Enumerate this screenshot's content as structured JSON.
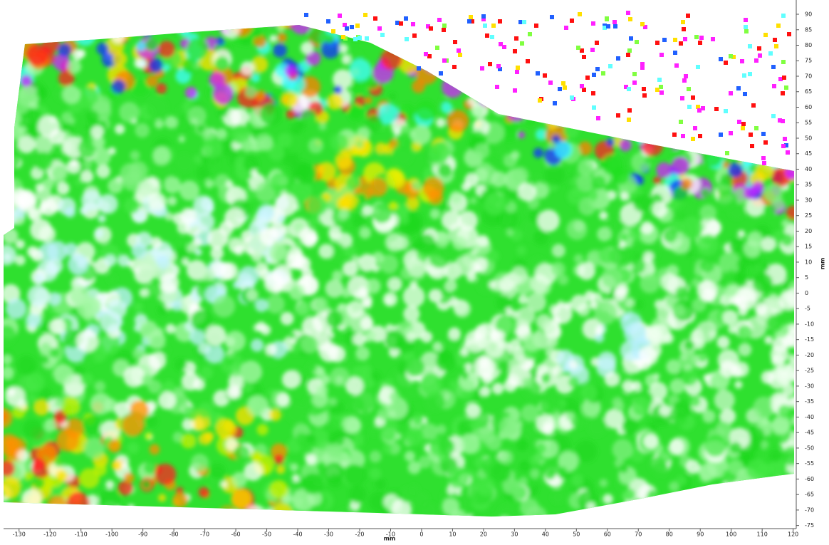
{
  "chart_data": {
    "type": "heatmap",
    "xlabel": "mm",
    "ylabel": "mm",
    "xlim": [
      -135,
      121
    ],
    "ylim": [
      -76,
      94.6
    ],
    "xticks": [
      -130,
      -120,
      -110,
      -100,
      -90,
      -80,
      -70,
      -60,
      -50,
      -40,
      -30,
      -20,
      -10,
      0,
      10,
      20,
      30,
      40,
      50,
      60,
      70,
      80,
      90,
      100,
      110,
      120
    ],
    "yticks": [
      -75,
      -70,
      -65,
      -60,
      -55,
      -50,
      -45,
      -40,
      -35,
      -30,
      -25,
      -20,
      -15,
      -10,
      -5,
      0,
      5,
      10,
      15,
      20,
      25,
      30,
      35,
      40,
      45,
      50,
      55,
      60,
      65,
      70,
      75,
      80,
      85,
      90
    ]
  }
}
